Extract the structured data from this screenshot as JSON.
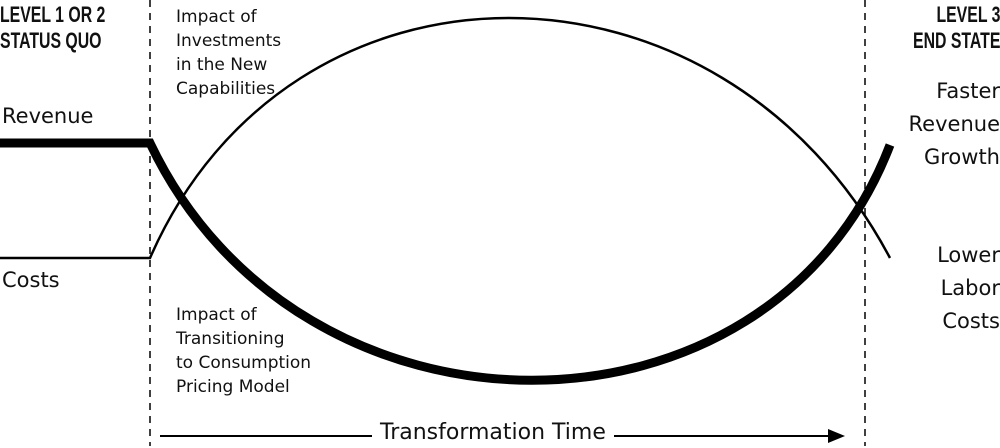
{
  "left_header": {
    "line1": "LEVEL 1 OR 2",
    "line2": "STATUS QUO"
  },
  "right_header": {
    "line1": "LEVEL 3",
    "line2": "END STATE"
  },
  "left_labels": {
    "revenue": "Revenue",
    "costs": "Costs"
  },
  "right_labels": {
    "revenue": [
      "Faster",
      "Revenue",
      "Growth"
    ],
    "costs": [
      "Lower",
      "Labor",
      "Costs"
    ]
  },
  "annotations": {
    "investments": [
      "Impact of",
      "Investments",
      "in the New",
      "Capabilities"
    ],
    "pricing": [
      "Impact of",
      "Transitioning",
      "to Consumption",
      "Pricing Model"
    ]
  },
  "axis_label": "Transformation Time",
  "colors": {
    "line": "#000000",
    "background": "#ffffff"
  }
}
